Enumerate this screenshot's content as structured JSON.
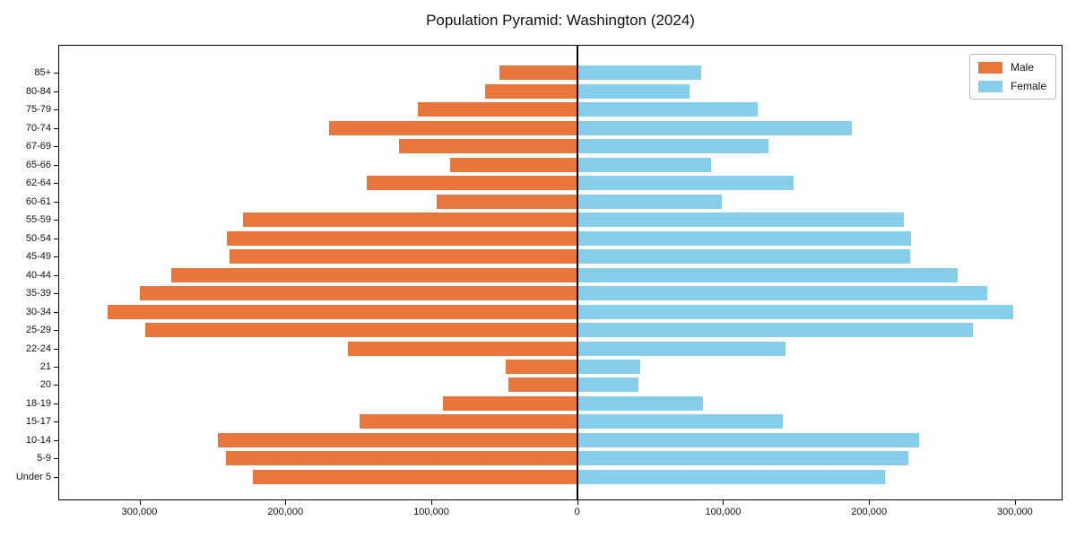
{
  "chart_data": {
    "type": "bar",
    "subtype": "population-pyramid",
    "title": "Population Pyramid: Washington (2024)",
    "orientation": "horizontal",
    "grid": false,
    "categories_top_to_bottom": [
      "85+",
      "80-84",
      "75-79",
      "70-74",
      "67-69",
      "65-66",
      "62-64",
      "60-61",
      "55-59",
      "50-54",
      "45-49",
      "40-44",
      "35-39",
      "30-34",
      "25-29",
      "22-24",
      "21",
      "20",
      "18-19",
      "15-17",
      "10-14",
      "5-9",
      "Under 5"
    ],
    "series": [
      {
        "name": "Male",
        "side": "left",
        "color": "#e8763d",
        "values": [
          53000,
          63000,
          109000,
          170000,
          122000,
          87000,
          144000,
          96000,
          229000,
          240000,
          238000,
          278000,
          300000,
          322000,
          296000,
          157000,
          49000,
          47000,
          92000,
          149000,
          246000,
          241000,
          222000
        ]
      },
      {
        "name": "Female",
        "side": "right",
        "color": "#87ceeb",
        "values": [
          85000,
          77000,
          124000,
          188000,
          131000,
          92000,
          148000,
          99000,
          224000,
          229000,
          228000,
          261000,
          281000,
          299000,
          271000,
          143000,
          43000,
          42000,
          86000,
          141000,
          234000,
          227000,
          211000
        ]
      }
    ],
    "x_axis": {
      "min": -355000,
      "max": 332000,
      "zero_line": true,
      "ticks": [
        {
          "value": -300000,
          "label": "300,000"
        },
        {
          "value": -200000,
          "label": "200,000"
        },
        {
          "value": -100000,
          "label": "100,000"
        },
        {
          "value": 0,
          "label": "0"
        },
        {
          "value": 100000,
          "label": "100,000"
        },
        {
          "value": 200000,
          "label": "200,000"
        },
        {
          "value": 300000,
          "label": "300,000"
        }
      ]
    },
    "legend": {
      "position": "upper-right",
      "entries": [
        "Male",
        "Female"
      ]
    }
  }
}
